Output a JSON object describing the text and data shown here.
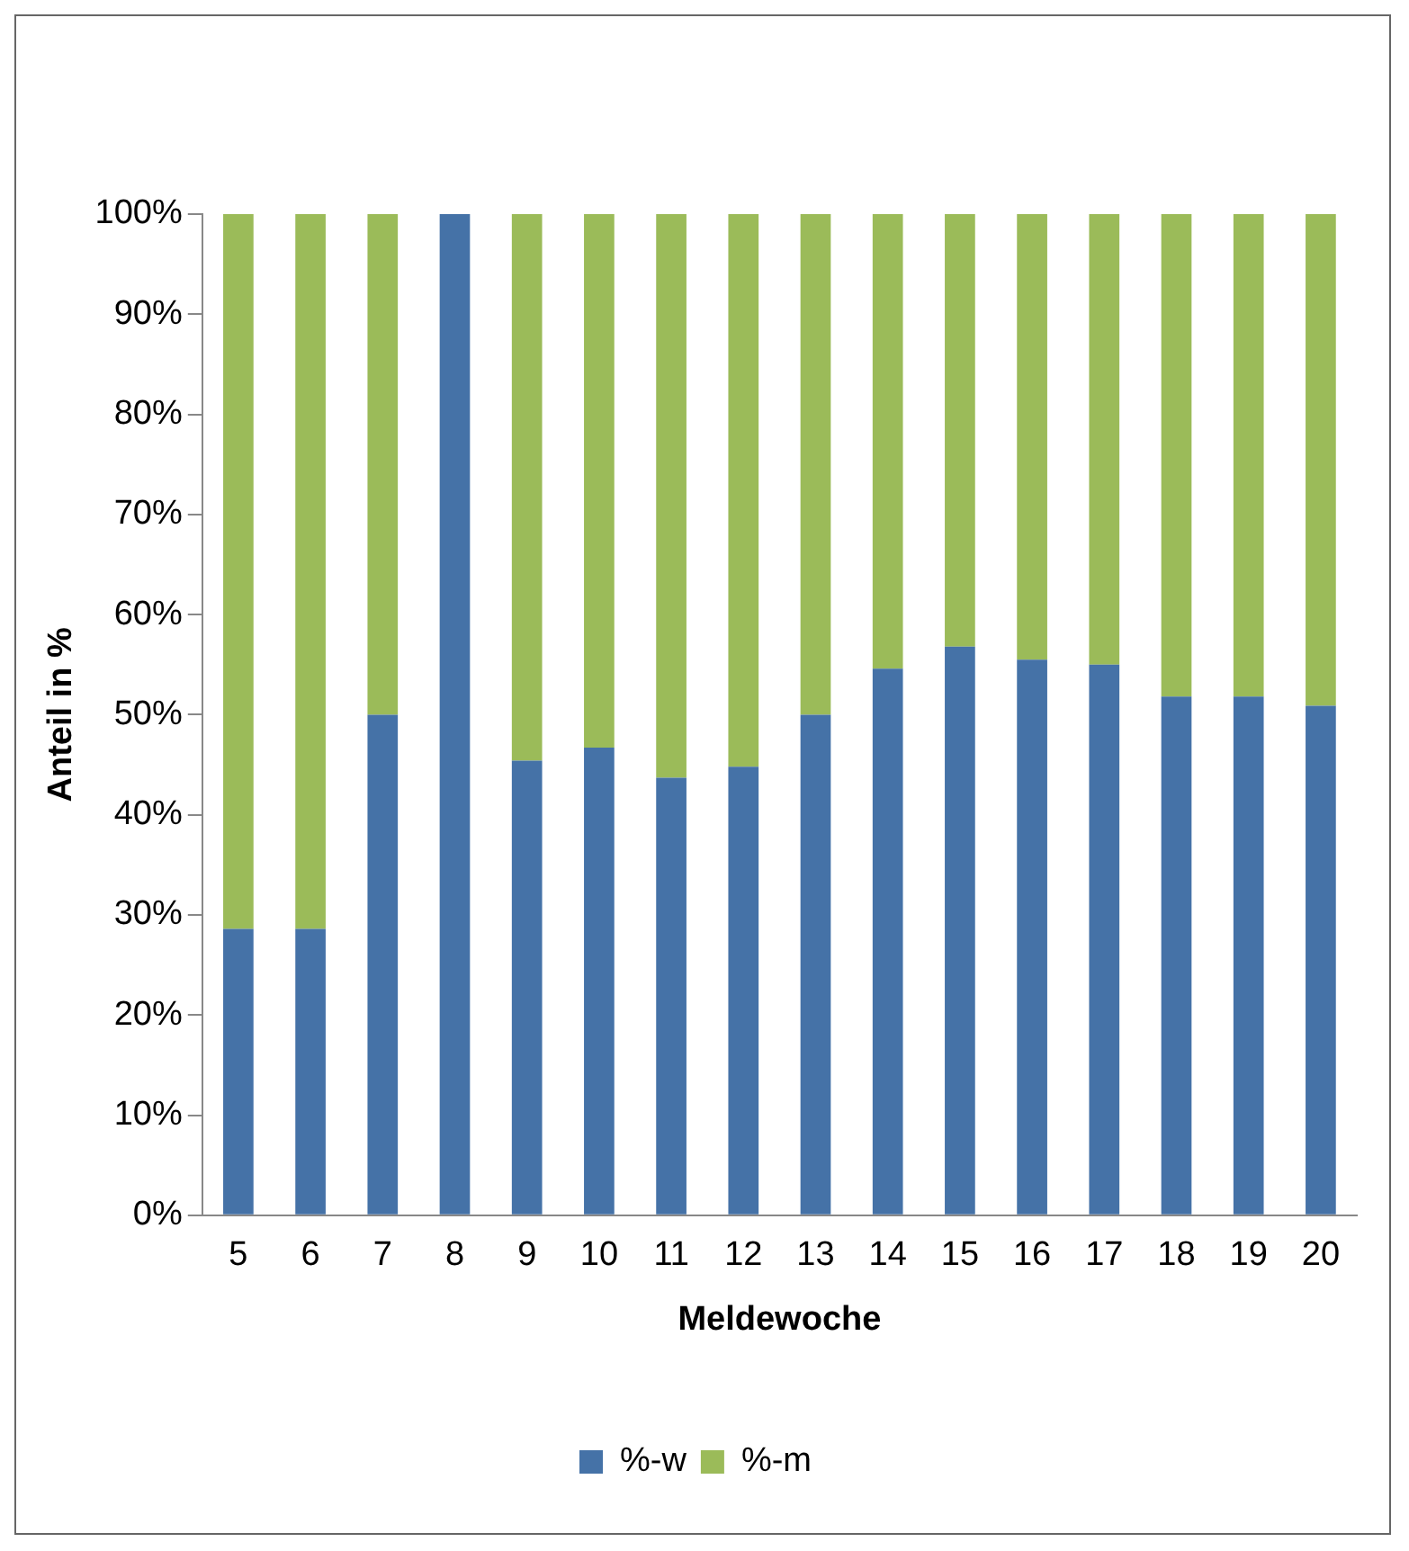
{
  "chart_data": {
    "type": "bar",
    "stacked": true,
    "xlabel": "Meldewoche",
    "ylabel": "Anteil in %",
    "categories": [
      "5",
      "6",
      "7",
      "8",
      "9",
      "10",
      "11",
      "12",
      "13",
      "14",
      "15",
      "16",
      "17",
      "18",
      "19",
      "20"
    ],
    "series": [
      {
        "name": "%-w",
        "color": "#4572a7",
        "values": [
          28.6,
          28.6,
          50,
          100,
          45.4,
          46.7,
          43.7,
          44.8,
          50,
          54.6,
          56.8,
          55.5,
          55,
          51.8,
          51.8,
          50.9
        ]
      },
      {
        "name": "%-m",
        "color": "#9bbb59",
        "values": [
          71.4,
          71.4,
          50,
          0,
          54.6,
          53.3,
          56.3,
          55.2,
          50,
          45.4,
          43.2,
          44.5,
          45,
          48.2,
          48.2,
          49.1
        ]
      }
    ],
    "ylim": [
      0,
      100
    ],
    "yticks": [
      {
        "value": 0,
        "label": "0%"
      },
      {
        "value": 10,
        "label": "10%"
      },
      {
        "value": 20,
        "label": "20%"
      },
      {
        "value": 30,
        "label": "30%"
      },
      {
        "value": 40,
        "label": "40%"
      },
      {
        "value": 50,
        "label": "50%"
      },
      {
        "value": 60,
        "label": "60%"
      },
      {
        "value": 70,
        "label": "70%"
      },
      {
        "value": 80,
        "label": "80%"
      },
      {
        "value": 90,
        "label": "90%"
      },
      {
        "value": 100,
        "label": "100%"
      }
    ],
    "grid": false,
    "legend": "bottom"
  }
}
